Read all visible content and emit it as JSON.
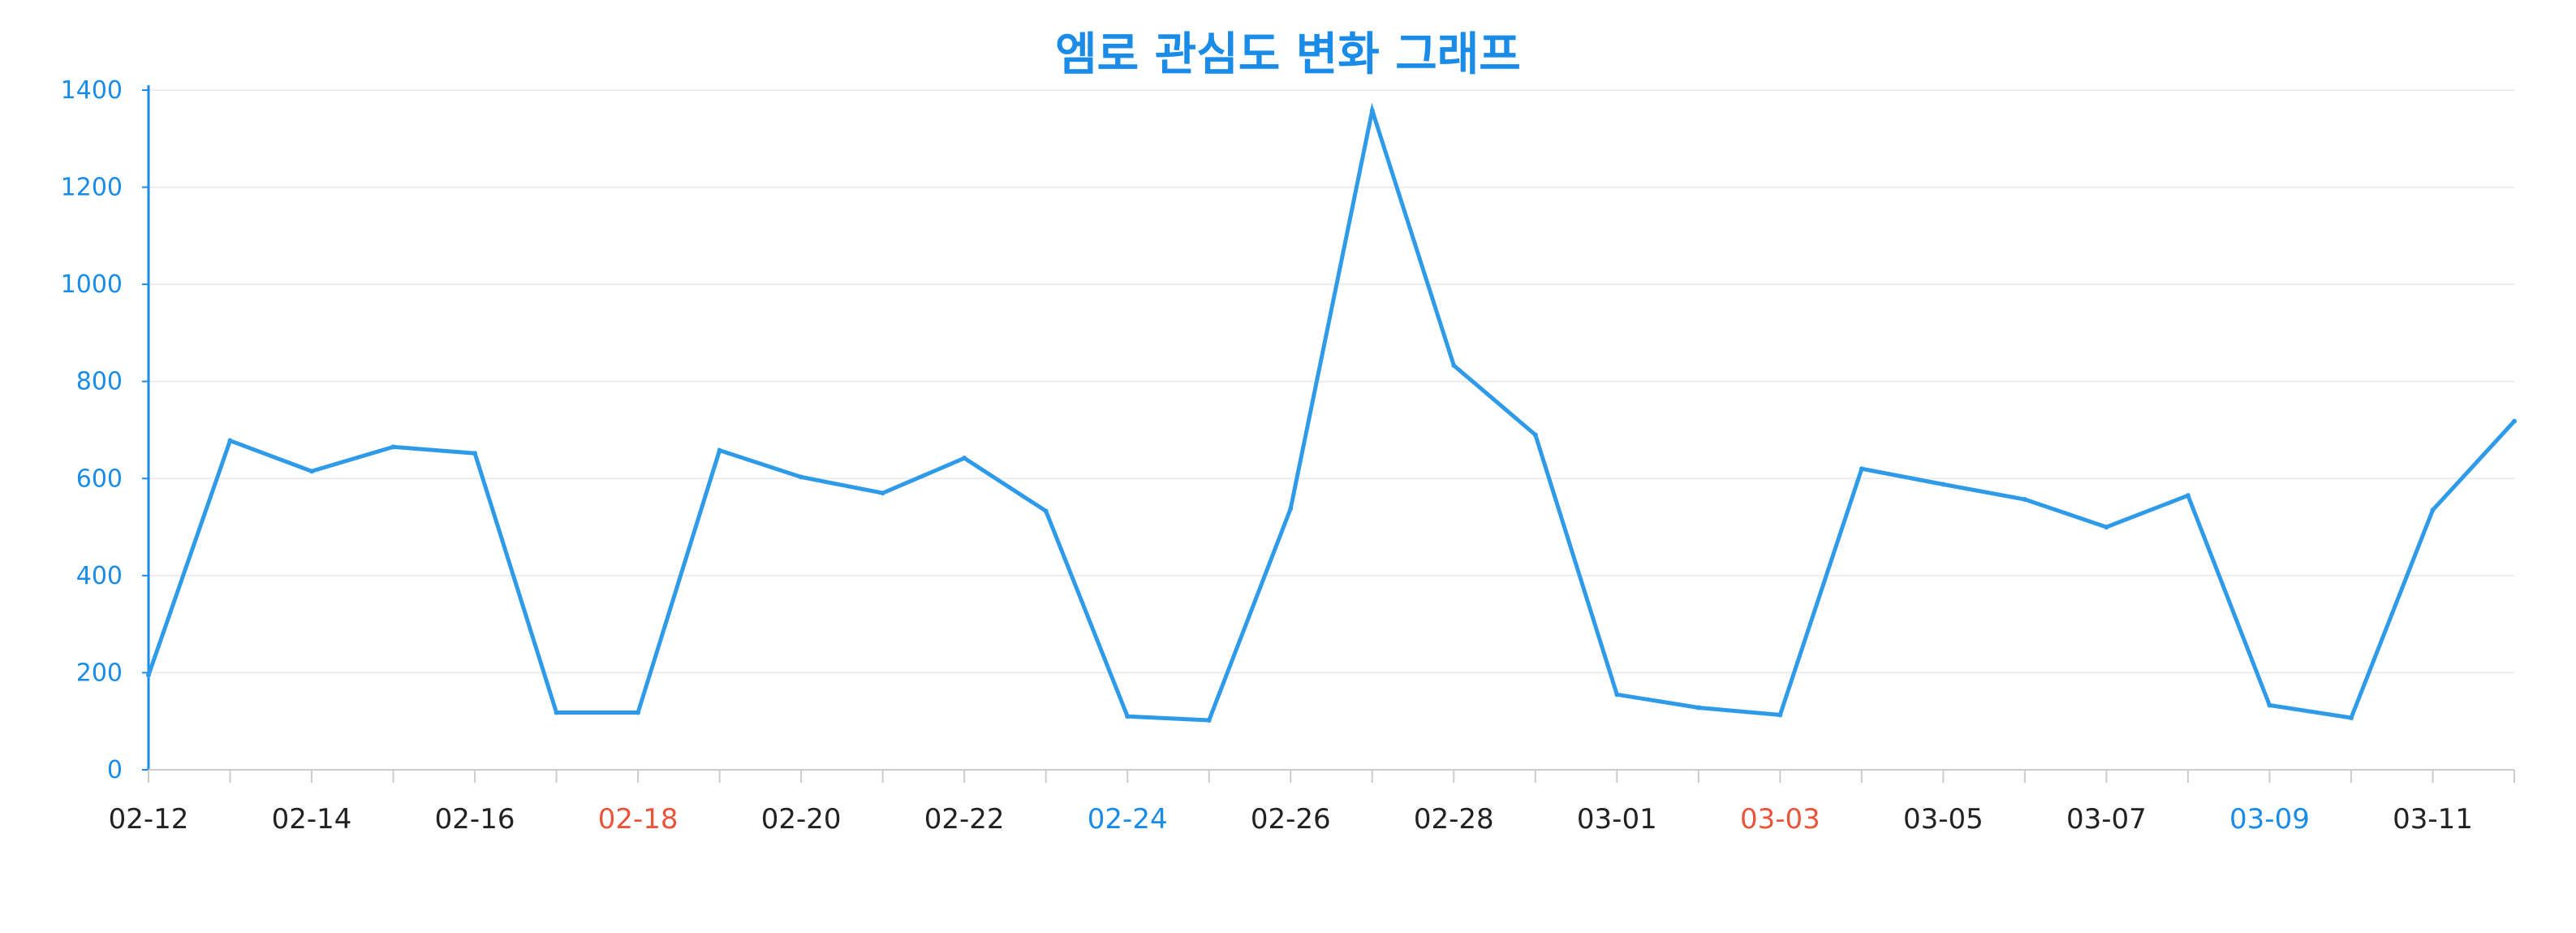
{
  "chart_data": {
    "type": "line",
    "title": "엠로 관심도 변화 그래프",
    "xlabel": "",
    "ylabel": "",
    "ylim": [
      0,
      1400
    ],
    "y_ticks": [
      0,
      200,
      400,
      600,
      800,
      1000,
      1200,
      1400
    ],
    "grid": "horizontal",
    "x": [
      "02-12",
      "02-13",
      "02-14",
      "02-15",
      "02-16",
      "02-17",
      "02-18",
      "02-19",
      "02-20",
      "02-21",
      "02-22",
      "02-23",
      "02-24",
      "02-25",
      "02-26",
      "02-27",
      "02-28",
      "02-29",
      "03-01",
      "03-02",
      "03-03",
      "03-04",
      "03-05",
      "03-06",
      "03-07",
      "03-08",
      "03-09",
      "03-10",
      "03-11",
      "03-12"
    ],
    "x_tick_labels": [
      {
        "label": "02-12",
        "color": "#222222"
      },
      {
        "label": "02-14",
        "color": "#222222"
      },
      {
        "label": "02-16",
        "color": "#222222"
      },
      {
        "label": "02-18",
        "color": "#e8553a"
      },
      {
        "label": "02-20",
        "color": "#222222"
      },
      {
        "label": "02-22",
        "color": "#222222"
      },
      {
        "label": "02-24",
        "color": "#1a8ce8"
      },
      {
        "label": "02-26",
        "color": "#222222"
      },
      {
        "label": "02-28",
        "color": "#222222"
      },
      {
        "label": "03-01",
        "color": "#222222"
      },
      {
        "label": "03-03",
        "color": "#e8553a"
      },
      {
        "label": "03-05",
        "color": "#222222"
      },
      {
        "label": "03-07",
        "color": "#222222"
      },
      {
        "label": "03-09",
        "color": "#1a8ce8"
      },
      {
        "label": "03-11",
        "color": "#222222"
      }
    ],
    "series": [
      {
        "color": "#2f9be8",
        "values": [
          195,
          678,
          615,
          665,
          652,
          118,
          118,
          658,
          603,
          570,
          642,
          533,
          110,
          102,
          538,
          1358,
          833,
          690,
          155,
          128,
          113,
          620,
          588,
          557,
          500,
          565,
          133,
          107,
          535,
          718
        ]
      }
    ]
  }
}
